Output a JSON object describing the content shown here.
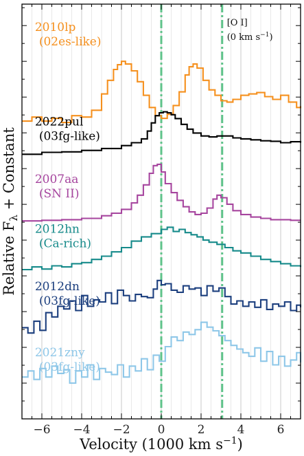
{
  "chart_data": {
    "type": "line",
    "title": "",
    "xlabel": "Velocity (1000 km s",
    "xlabel_sup": "−1",
    "xlabel_close": ")",
    "ylabel": "Relative F",
    "ylabel_sub": "λ",
    "ylabel_rest": " + Constant",
    "xlim": [
      -7,
      7
    ],
    "ylim": [
      0,
      11.6
    ],
    "xticks": [
      -6,
      -4,
      -2,
      0,
      2,
      4,
      6
    ],
    "xtick_labels": [
      "−6",
      "−4",
      "−2",
      "0",
      "2",
      "4",
      "6"
    ],
    "grid": "vertical minor lines",
    "ref_lines": [
      {
        "x": 0,
        "color": "#5fc38a"
      },
      {
        "x": 3.06,
        "color": "#5fc38a"
      }
    ],
    "annotation": {
      "line1": "[O I]",
      "line2": "(0 km s",
      "sup": "−1",
      "close": ")",
      "x": 3.3
    },
    "series": [
      {
        "name": "2010lp",
        "subname": "(02es-like)",
        "color": "#f5901e",
        "offset": 8.1,
        "scale": 1.9,
        "x": [
          -7.0,
          -6.5,
          -6.0,
          -5.5,
          -5.0,
          -4.5,
          -4.0,
          -3.5,
          -3.0,
          -2.7,
          -2.4,
          -2.2,
          -2.0,
          -1.8,
          -1.5,
          -1.2,
          -0.9,
          -0.6,
          -0.3,
          0.0,
          0.3,
          0.6,
          0.9,
          1.2,
          1.4,
          1.6,
          1.8,
          2.1,
          2.4,
          2.7,
          3.0,
          3.3,
          3.6,
          4.0,
          4.4,
          4.8,
          5.2,
          5.6,
          6.0,
          6.4,
          6.8,
          7.0
        ],
        "y": [
          0.12,
          0.18,
          0.12,
          0.16,
          0.1,
          0.2,
          0.18,
          0.28,
          0.52,
          0.72,
          0.88,
          0.95,
          1.0,
          0.96,
          0.86,
          0.7,
          0.5,
          0.32,
          0.2,
          0.16,
          0.22,
          0.35,
          0.55,
          0.8,
          0.92,
          0.96,
          0.9,
          0.72,
          0.58,
          0.5,
          0.42,
          0.4,
          0.44,
          0.5,
          0.52,
          0.54,
          0.48,
          0.44,
          0.5,
          0.4,
          0.32,
          0.34
        ]
      },
      {
        "name": "2022pul",
        "subname": "(03fg-like)",
        "color": "#000000",
        "offset": 7.4,
        "scale": 1.35,
        "x": [
          -7.0,
          -6.0,
          -5.0,
          -4.0,
          -3.0,
          -2.0,
          -1.5,
          -1.0,
          -0.7,
          -0.5,
          -0.3,
          -0.1,
          0.1,
          0.3,
          0.5,
          0.7,
          1.0,
          1.3,
          1.6,
          2.0,
          2.4,
          2.8,
          3.2,
          3.6,
          4.0,
          4.5,
          5.0,
          5.5,
          6.0,
          6.5,
          7.0
        ],
        "y": [
          0.0,
          0.04,
          0.05,
          0.08,
          0.12,
          0.18,
          0.24,
          0.32,
          0.48,
          0.65,
          0.8,
          0.86,
          0.88,
          0.86,
          0.82,
          0.74,
          0.62,
          0.52,
          0.44,
          0.38,
          0.36,
          0.38,
          0.38,
          0.34,
          0.32,
          0.3,
          0.28,
          0.27,
          0.24,
          0.26,
          0.24
        ]
      },
      {
        "name": "2007aa",
        "subname": "(SN II)",
        "color": "#a6459e",
        "offset": 5.5,
        "scale": 1.8,
        "x": [
          -7.0,
          -6.0,
          -5.0,
          -4.0,
          -3.0,
          -2.5,
          -2.0,
          -1.5,
          -1.2,
          -0.9,
          -0.6,
          -0.4,
          -0.2,
          0.0,
          0.2,
          0.5,
          0.8,
          1.1,
          1.4,
          1.7,
          2.0,
          2.3,
          2.6,
          2.8,
          3.0,
          3.3,
          3.6,
          4.0,
          4.5,
          5.0,
          5.5,
          6.0,
          6.5,
          7.0
        ],
        "y": [
          0.02,
          0.03,
          0.04,
          0.06,
          0.1,
          0.14,
          0.2,
          0.3,
          0.42,
          0.58,
          0.76,
          0.88,
          0.9,
          0.78,
          0.6,
          0.46,
          0.34,
          0.24,
          0.16,
          0.12,
          0.14,
          0.22,
          0.36,
          0.42,
          0.38,
          0.28,
          0.18,
          0.12,
          0.08,
          0.06,
          0.04,
          0.04,
          0.03,
          0.03
        ]
      },
      {
        "name": "2012hn",
        "subname": "(Ca-rich)",
        "color": "#168a8a",
        "offset": 4.1,
        "scale": 1.5,
        "x": [
          -7.0,
          -6.5,
          -6.0,
          -5.5,
          -5.0,
          -4.5,
          -4.0,
          -3.5,
          -3.0,
          -2.5,
          -2.0,
          -1.5,
          -1.0,
          -0.5,
          0.0,
          0.3,
          0.6,
          0.9,
          1.2,
          1.5,
          1.8,
          2.1,
          2.4,
          2.8,
          3.2,
          3.6,
          4.0,
          4.5,
          5.0,
          5.5,
          6.0,
          6.5,
          7.0
        ],
        "y": [
          0.05,
          0.1,
          0.06,
          0.12,
          0.1,
          0.16,
          0.18,
          0.24,
          0.3,
          0.38,
          0.46,
          0.58,
          0.66,
          0.72,
          0.8,
          0.84,
          0.76,
          0.8,
          0.74,
          0.7,
          0.66,
          0.6,
          0.56,
          0.52,
          0.46,
          0.4,
          0.36,
          0.3,
          0.24,
          0.2,
          0.16,
          0.12,
          0.1
        ]
      },
      {
        "name": "2012dn",
        "subname": "(03fg-like)",
        "color": "#1c3f7e",
        "offset": 2.4,
        "scale": 1.5,
        "x": [
          -7.0,
          -6.7,
          -6.4,
          -6.1,
          -5.8,
          -5.5,
          -5.2,
          -4.9,
          -4.6,
          -4.3,
          -4.0,
          -3.7,
          -3.4,
          -3.1,
          -2.8,
          -2.5,
          -2.2,
          -1.9,
          -1.6,
          -1.3,
          -1.0,
          -0.7,
          -0.4,
          -0.2,
          0.0,
          0.2,
          0.5,
          0.8,
          1.1,
          1.4,
          1.7,
          2.0,
          2.3,
          2.6,
          2.9,
          3.2,
          3.5,
          3.8,
          4.1,
          4.4,
          4.7,
          5.0,
          5.3,
          5.6,
          5.9,
          6.2,
          6.5,
          6.8,
          7.0
        ],
        "y": [
          0.1,
          0.0,
          0.22,
          0.05,
          0.38,
          0.3,
          0.5,
          0.45,
          0.6,
          0.42,
          0.7,
          0.5,
          0.62,
          0.58,
          0.75,
          0.55,
          0.8,
          0.7,
          0.6,
          0.72,
          0.68,
          0.66,
          0.82,
          0.98,
          0.9,
          0.92,
          0.8,
          0.76,
          0.88,
          0.82,
          0.84,
          0.7,
          0.88,
          0.78,
          0.84,
          0.68,
          0.54,
          0.6,
          0.5,
          0.58,
          0.48,
          0.62,
          0.44,
          0.54,
          0.5,
          0.58,
          0.42,
          0.52,
          0.48
        ]
      },
      {
        "name": "2021zny",
        "subname": "(03fg-like)",
        "color": "#8ec7e8",
        "offset": 1.0,
        "scale": 1.7,
        "x": [
          -7.0,
          -6.7,
          -6.4,
          -6.1,
          -5.8,
          -5.5,
          -5.2,
          -4.9,
          -4.6,
          -4.3,
          -4.0,
          -3.7,
          -3.4,
          -3.1,
          -2.8,
          -2.5,
          -2.2,
          -1.9,
          -1.6,
          -1.3,
          -1.0,
          -0.7,
          -0.4,
          -0.1,
          0.2,
          0.5,
          0.8,
          1.1,
          1.4,
          1.7,
          2.0,
          2.3,
          2.6,
          2.9,
          3.2,
          3.5,
          3.8,
          4.1,
          4.4,
          4.7,
          5.0,
          5.3,
          5.6,
          5.9,
          6.2,
          6.5,
          6.8,
          7.0
        ],
        "y": [
          0.1,
          0.2,
          0.06,
          0.24,
          0.1,
          0.28,
          0.16,
          0.22,
          0.0,
          0.2,
          0.1,
          0.3,
          0.06,
          0.24,
          0.18,
          0.14,
          0.3,
          0.1,
          0.28,
          0.2,
          0.4,
          0.22,
          0.46,
          0.36,
          0.6,
          0.76,
          0.7,
          0.84,
          0.8,
          0.88,
          1.0,
          0.92,
          0.86,
          0.78,
          0.7,
          0.62,
          0.56,
          0.5,
          0.44,
          0.58,
          0.36,
          0.52,
          0.3,
          0.44,
          0.28,
          0.38,
          0.5,
          0.34
        ]
      }
    ]
  }
}
